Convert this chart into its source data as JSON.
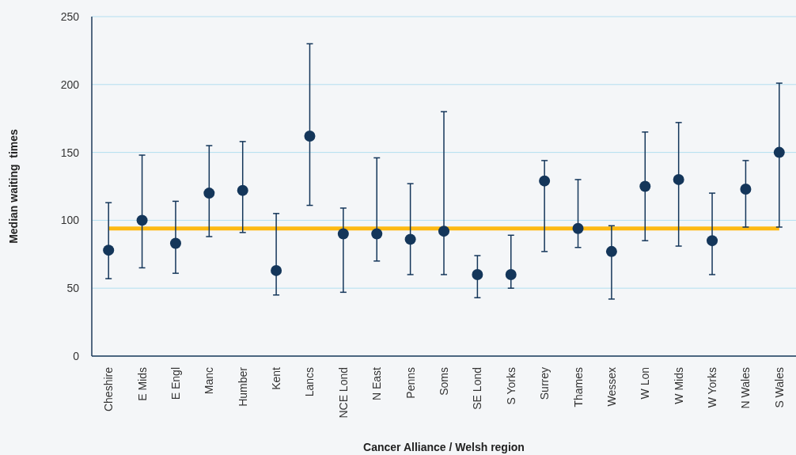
{
  "chart_data": {
    "type": "scatter",
    "xlabel": "Cancer Alliance / Welsh region",
    "ylabel": "Median waiting  times",
    "categories": [
      "Cheshire",
      "E Mids",
      "E Engl",
      "Manc",
      "Humber",
      "Kent",
      "Lancs",
      "NCE Lond",
      "N East",
      "Penns",
      "Soms",
      "SE Lond",
      "S Yorks",
      "Surrey",
      "Thames",
      "Wessex",
      "W Lon",
      "W Mids",
      "W Yorks",
      "N Wales",
      "S Wales"
    ],
    "series": [
      {
        "color": "#14365a",
        "values": [
          78,
          100,
          83,
          120,
          122,
          63,
          162,
          90,
          90,
          86,
          92,
          60,
          60,
          129,
          94,
          77,
          125,
          130,
          85,
          123,
          150
        ],
        "errors": [
          [
            57,
            113
          ],
          [
            65,
            148
          ],
          [
            61,
            114
          ],
          [
            88,
            155
          ],
          [
            91,
            158
          ],
          [
            45,
            105
          ],
          [
            111,
            230
          ],
          [
            47,
            109
          ],
          [
            70,
            146
          ],
          [
            60,
            127
          ],
          [
            60,
            180
          ],
          [
            43,
            74
          ],
          [
            50,
            89
          ],
          [
            77,
            144
          ],
          [
            80,
            130
          ],
          [
            42,
            96
          ],
          [
            85,
            165
          ],
          [
            81,
            172
          ],
          [
            60,
            120
          ],
          [
            95,
            144
          ],
          [
            95,
            201
          ]
        ]
      }
    ],
    "ref_lines": [
      {
        "axis": "y",
        "value": 94,
        "color": "#fdb913"
      }
    ],
    "ylim": [
      0,
      250
    ],
    "yticks": [
      0,
      50,
      100,
      150,
      200,
      250
    ],
    "grid": "y",
    "marker": "circle"
  }
}
